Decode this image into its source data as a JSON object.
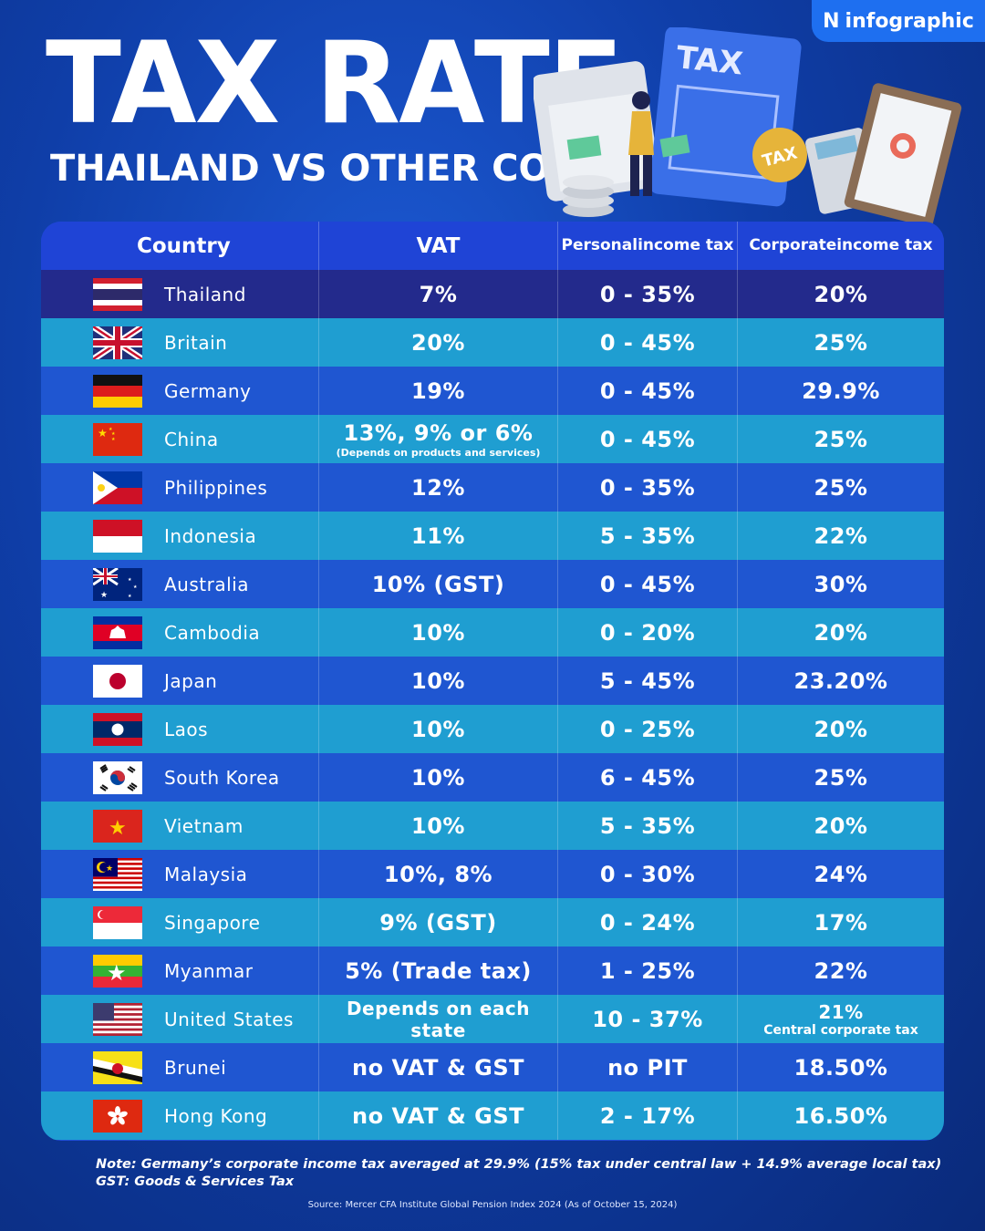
{
  "brand": {
    "name": "infographic",
    "mark": "N"
  },
  "title": "TAX RATE",
  "subtitle": "THAILAND VS OTHER COUNTRIES",
  "illustration": {
    "tax_label": "TAX",
    "coin_label": "TAX"
  },
  "table": {
    "headers": {
      "country": "Country",
      "vat": "VAT",
      "personal_l1": "Personal",
      "personal_l2": "income tax",
      "corporate_l1": "Corporate",
      "corporate_l2": "income tax"
    },
    "rows": [
      {
        "country": "Thailand",
        "flag": "thailand-flag-icon",
        "vat": "7%",
        "vat_note": "",
        "personal": "0 - 35%",
        "corporate": "20%",
        "corporate_note": ""
      },
      {
        "country": "Britain",
        "flag": "uk-flag-icon",
        "vat": "20%",
        "vat_note": "",
        "personal": "0 - 45%",
        "corporate": "25%",
        "corporate_note": ""
      },
      {
        "country": "Germany",
        "flag": "germany-flag-icon",
        "vat": "19%",
        "vat_note": "",
        "personal": "0 - 45%",
        "corporate": "29.9%",
        "corporate_note": ""
      },
      {
        "country": "China",
        "flag": "china-flag-icon",
        "vat": "13%, 9% or 6%",
        "vat_note": "(Depends on products and services)",
        "personal": "0 - 45%",
        "corporate": "25%",
        "corporate_note": ""
      },
      {
        "country": "Philippines",
        "flag": "philippines-flag-icon",
        "vat": "12%",
        "vat_note": "",
        "personal": "0 - 35%",
        "corporate": "25%",
        "corporate_note": ""
      },
      {
        "country": "Indonesia",
        "flag": "indonesia-flag-icon",
        "vat": "11%",
        "vat_note": "",
        "personal": "5 - 35%",
        "corporate": "22%",
        "corporate_note": ""
      },
      {
        "country": "Australia",
        "flag": "australia-flag-icon",
        "vat": "10% (GST)",
        "vat_note": "",
        "personal": "0 - 45%",
        "corporate": "30%",
        "corporate_note": ""
      },
      {
        "country": "Cambodia",
        "flag": "cambodia-flag-icon",
        "vat": "10%",
        "vat_note": "",
        "personal": "0 - 20%",
        "corporate": "20%",
        "corporate_note": ""
      },
      {
        "country": "Japan",
        "flag": "japan-flag-icon",
        "vat": "10%",
        "vat_note": "",
        "personal": "5 - 45%",
        "corporate": "23.20%",
        "corporate_note": ""
      },
      {
        "country": "Laos",
        "flag": "laos-flag-icon",
        "vat": "10%",
        "vat_note": "",
        "personal": "0 - 25%",
        "corporate": "20%",
        "corporate_note": ""
      },
      {
        "country": "South Korea",
        "flag": "south-korea-flag-icon",
        "vat": "10%",
        "vat_note": "",
        "personal": "6 - 45%",
        "corporate": "25%",
        "corporate_note": ""
      },
      {
        "country": "Vietnam",
        "flag": "vietnam-flag-icon",
        "vat": "10%",
        "vat_note": "",
        "personal": "5 - 35%",
        "corporate": "20%",
        "corporate_note": ""
      },
      {
        "country": "Malaysia",
        "flag": "malaysia-flag-icon",
        "vat": "10%, 8%",
        "vat_note": "",
        "personal": "0 - 30%",
        "corporate": "24%",
        "corporate_note": ""
      },
      {
        "country": "Singapore",
        "flag": "singapore-flag-icon",
        "vat": "9% (GST)",
        "vat_note": "",
        "personal": "0 - 24%",
        "corporate": "17%",
        "corporate_note": ""
      },
      {
        "country": "Myanmar",
        "flag": "myanmar-flag-icon",
        "vat": "5% (Trade tax)",
        "vat_note": "",
        "personal": "1 - 25%",
        "corporate": "22%",
        "corporate_note": ""
      },
      {
        "country": "United States",
        "flag": "usa-flag-icon",
        "vat": "Depends on each state",
        "vat_note": "",
        "personal": "10 - 37%",
        "corporate": "21%",
        "corporate_note": "Central corporate tax"
      },
      {
        "country": "Brunei",
        "flag": "brunei-flag-icon",
        "vat": "no VAT & GST",
        "vat_note": "",
        "personal": "no PIT",
        "corporate": "18.50%",
        "corporate_note": ""
      },
      {
        "country": "Hong Kong",
        "flag": "hong-kong-flag-icon",
        "vat": "no VAT & GST",
        "vat_note": "",
        "personal": "2 - 17%",
        "corporate": "16.50%",
        "corporate_note": ""
      }
    ]
  },
  "notes": {
    "line1": "Note: Germany’s corporate income tax averaged at 29.9% (15% tax under central law + 14.9% average local tax)",
    "line2": "GST: Goods & Services Tax"
  },
  "source": "Source: Mercer CFA Institute Global Pension Index 2024 (As of October 15, 2024)",
  "colors": {
    "background": "#0f3ea8",
    "header_row": "#1f44d6",
    "highlight_row": "#232a8c",
    "light_row": "#1f9ed1",
    "dark_row": "#1f56d1",
    "brand_badge": "#1e6ff0"
  }
}
